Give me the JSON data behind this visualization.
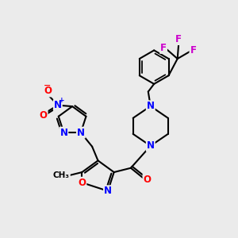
{
  "bg_color": "#ebebeb",
  "bond_color": "#000000",
  "bond_width": 1.5,
  "atom_colors": {
    "N": "#0000ff",
    "O": "#ff0000",
    "F": "#cc00cc",
    "C": "#000000"
  },
  "font_size_atom": 8.5,
  "figsize": [
    3.0,
    3.0
  ],
  "dpi": 100
}
